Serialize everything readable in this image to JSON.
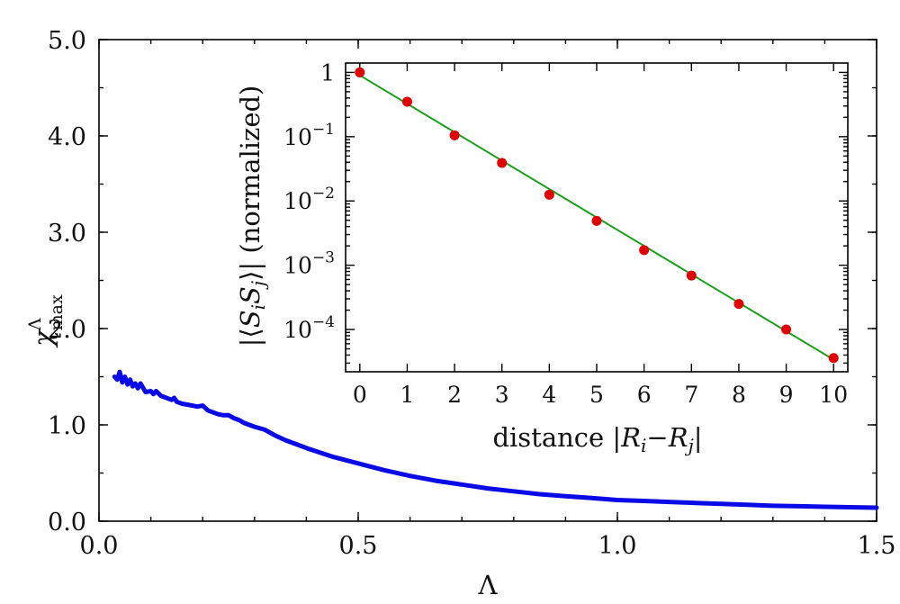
{
  "chart_data": [
    {
      "type": "line",
      "name": "main",
      "title": "",
      "xlabel": "Λ",
      "ylabel_symbol": "χ",
      "ylabel_sup": "Λ",
      "ylabel_sub": "max",
      "xlim": [
        0.0,
        1.5
      ],
      "ylim": [
        0.0,
        5.0
      ],
      "xticks": [
        0.0,
        0.5,
        1.0,
        1.5
      ],
      "xtick_labels": [
        "0.0",
        "0.5",
        "1.0",
        "1.5"
      ],
      "yticks": [
        0.0,
        1.0,
        2.0,
        3.0,
        4.0,
        5.0
      ],
      "ytick_labels": [
        "0.0",
        "1.0",
        "2.0",
        "3.0",
        "4.0",
        "5.0"
      ],
      "line_color": "#0a0ae6",
      "series": [
        {
          "name": "chi_max",
          "x": [
            0.03,
            0.035,
            0.04,
            0.045,
            0.05,
            0.055,
            0.06,
            0.065,
            0.07,
            0.075,
            0.08,
            0.09,
            0.1,
            0.105,
            0.11,
            0.12,
            0.13,
            0.14,
            0.145,
            0.15,
            0.16,
            0.17,
            0.18,
            0.19,
            0.2,
            0.21,
            0.22,
            0.23,
            0.24,
            0.25,
            0.26,
            0.27,
            0.28,
            0.29,
            0.3,
            0.32,
            0.34,
            0.36,
            0.38,
            0.4,
            0.45,
            0.5,
            0.55,
            0.6,
            0.65,
            0.7,
            0.75,
            0.8,
            0.85,
            0.9,
            0.95,
            1.0,
            1.05,
            1.1,
            1.15,
            1.2,
            1.25,
            1.3,
            1.35,
            1.4,
            1.45,
            1.5
          ],
          "y": [
            1.5,
            1.47,
            1.55,
            1.44,
            1.5,
            1.42,
            1.47,
            1.4,
            1.43,
            1.38,
            1.43,
            1.34,
            1.35,
            1.32,
            1.35,
            1.3,
            1.28,
            1.26,
            1.28,
            1.24,
            1.22,
            1.21,
            1.2,
            1.19,
            1.2,
            1.15,
            1.13,
            1.11,
            1.1,
            1.1,
            1.07,
            1.05,
            1.02,
            1.0,
            0.98,
            0.95,
            0.89,
            0.84,
            0.8,
            0.76,
            0.67,
            0.6,
            0.53,
            0.47,
            0.42,
            0.38,
            0.34,
            0.31,
            0.28,
            0.26,
            0.24,
            0.22,
            0.21,
            0.2,
            0.19,
            0.18,
            0.17,
            0.16,
            0.155,
            0.15,
            0.145,
            0.14
          ]
        }
      ]
    },
    {
      "type": "scatter",
      "name": "inset",
      "title": "",
      "xlabel": "distance |R_i−R_j|",
      "xlabel_parts": [
        "distance |",
        "R",
        "i",
        "−",
        "R",
        "j",
        "|"
      ],
      "ylabel": "|⟨S_i S_j⟩| (normalized)",
      "ylabel_parts": [
        "|⟨",
        "S",
        "i",
        "S",
        "j",
        "⟩| (normalized)"
      ],
      "yscale": "log",
      "xlim": [
        -0.3,
        10.3
      ],
      "ylim": [
        2.2e-05,
        1.4
      ],
      "xticks": [
        0,
        1,
        2,
        3,
        4,
        5,
        6,
        7,
        8,
        9,
        10
      ],
      "xtick_labels": [
        "0",
        "1",
        "2",
        "3",
        "4",
        "5",
        "6",
        "7",
        "8",
        "9",
        "10"
      ],
      "ytick_values": [
        1,
        0.1,
        0.01,
        0.001,
        0.0001
      ],
      "ytick_labels": [
        {
          "base": "1",
          "exp": ""
        },
        {
          "base": "10",
          "exp": "−1"
        },
        {
          "base": "10",
          "exp": "−2"
        },
        {
          "base": "10",
          "exp": "−3"
        },
        {
          "base": "10",
          "exp": "−4"
        }
      ],
      "point_color": "#e00000",
      "fit_color": "#1aa01a",
      "x": [
        0,
        1,
        2,
        3,
        4,
        5,
        6,
        7,
        8,
        9,
        10
      ],
      "y": [
        1.0,
        0.35,
        0.105,
        0.039,
        0.0125,
        0.0049,
        0.00172,
        0.00069,
        0.00025,
        0.0001,
        3.6e-05
      ],
      "fit": {
        "x": [
          0,
          10
        ],
        "y": [
          0.9,
          3.4e-05
        ]
      }
    }
  ]
}
